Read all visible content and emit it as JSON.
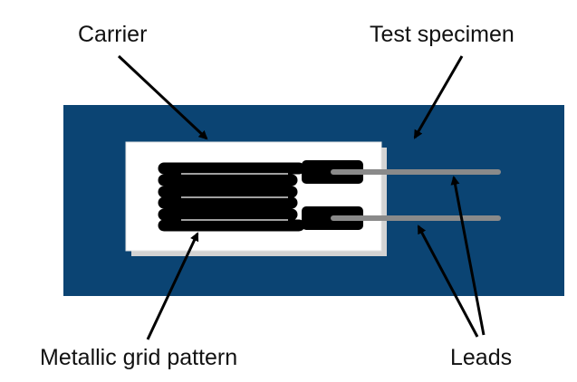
{
  "labels": {
    "carrier": "Carrier",
    "test_specimen": "Test specimen",
    "metallic_grid_pattern": "Metallic grid pattern",
    "leads": "Leads"
  },
  "colors": {
    "specimen": "#0b4473",
    "carrier": "#ffffff",
    "carrier_shadow": "#d3d3d3",
    "grid": "#000000",
    "lead": "#8a8a8a",
    "arrow": "#000000"
  }
}
